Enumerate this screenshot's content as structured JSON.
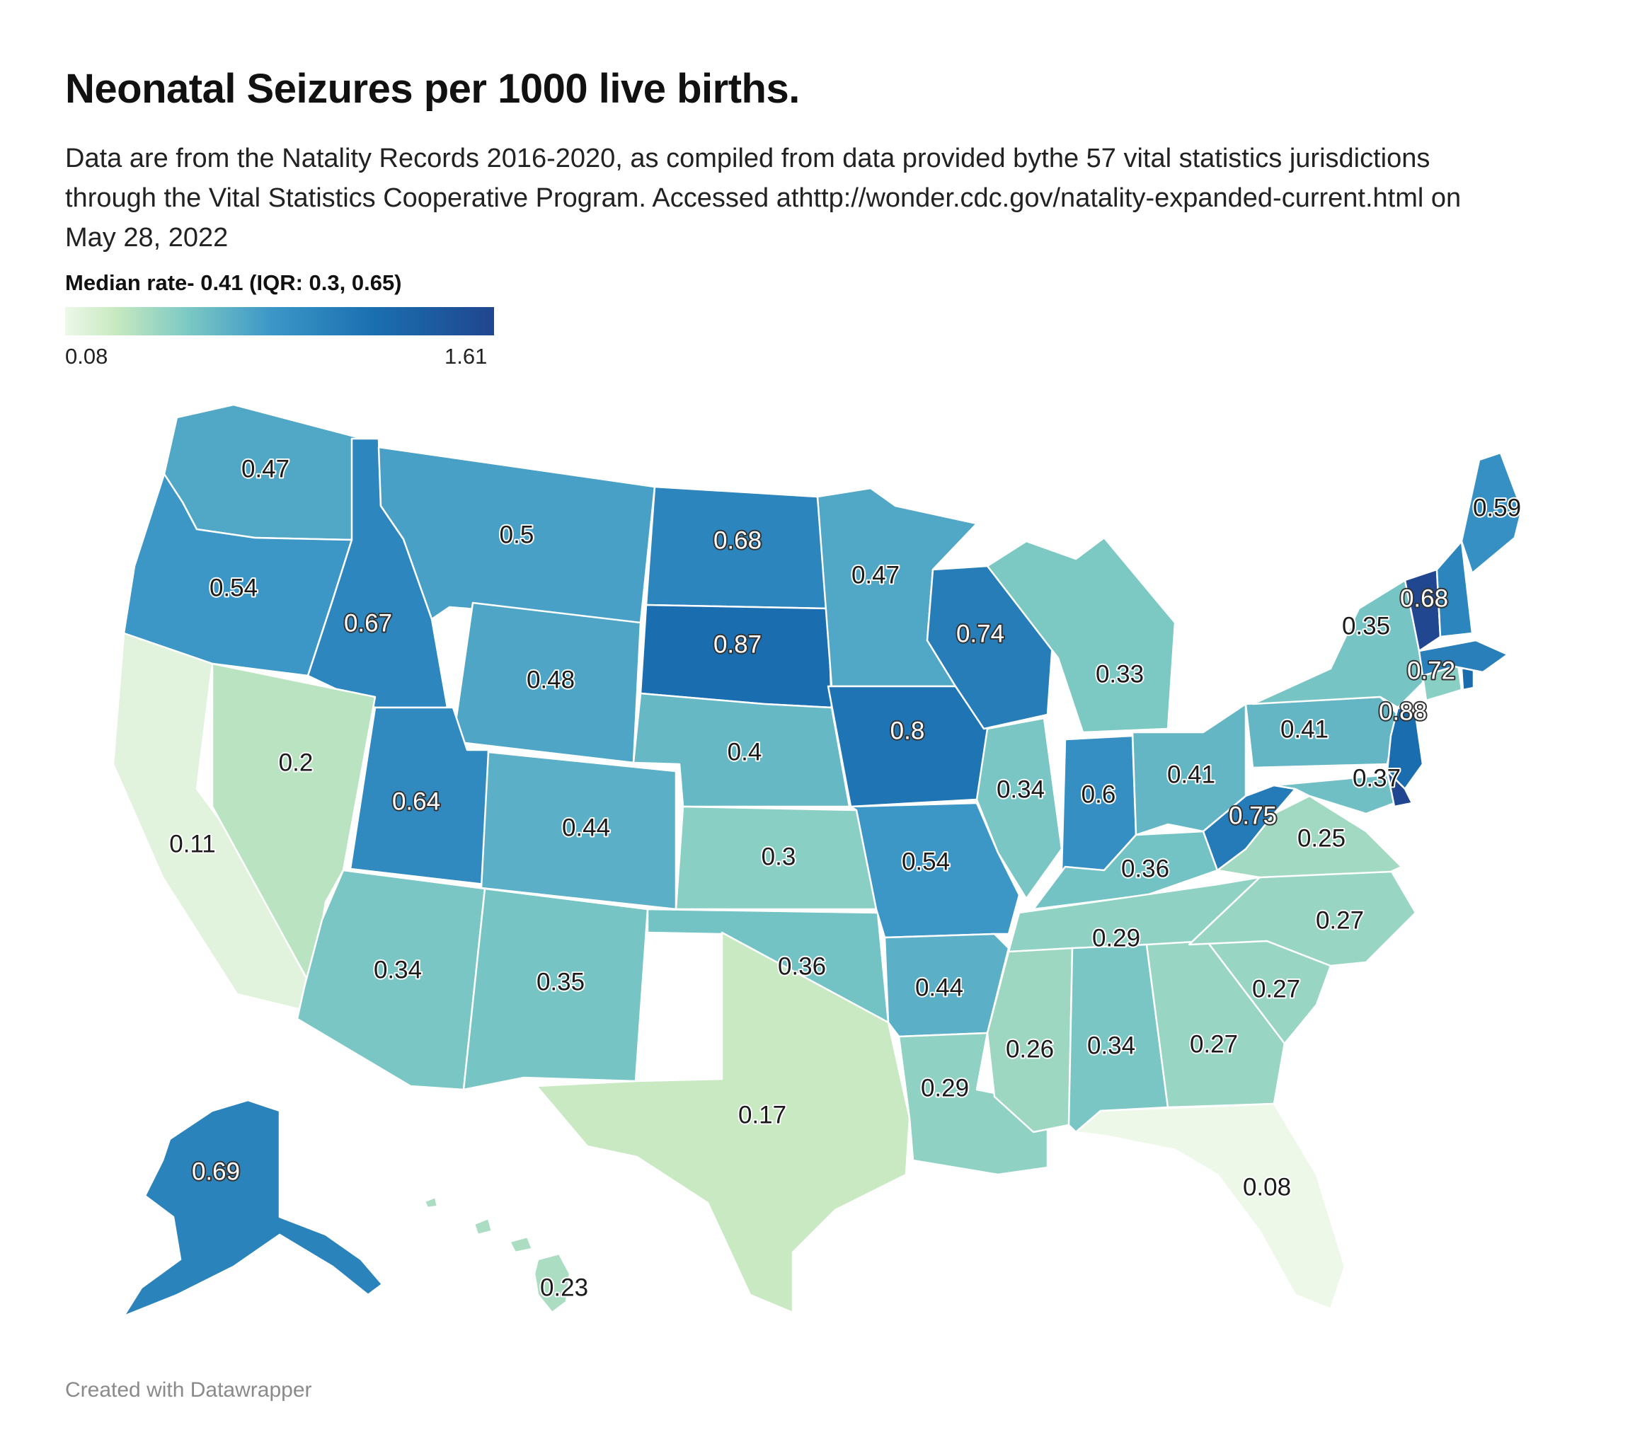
{
  "header": {
    "title": "Neonatal Seizures per 1000 live births.",
    "subtitle": "Data are from the Natality Records 2016-2020, as compiled from data provided bythe 57 vital statistics jurisdictions through the Vital Statistics Cooperative Program. Accessed athttp://wonder.cdc.gov/natality-expanded-current.html on May 28, 2022"
  },
  "legend": {
    "title": "Median rate- 0.41 (IQR: 0.3, 0.65)",
    "min": "0.08",
    "max": "1.61",
    "colors": [
      "#edf8e9",
      "#c7e9c0",
      "#7ecac4",
      "#3c97c7",
      "#1a6fb0",
      "#20468f"
    ]
  },
  "chart_data": {
    "type": "choropleth",
    "region": "United States",
    "range": [
      0.08,
      1.61
    ],
    "states": [
      {
        "state": "WA",
        "value": 0.47
      },
      {
        "state": "OR",
        "value": 0.54
      },
      {
        "state": "CA",
        "value": 0.11
      },
      {
        "state": "ID",
        "value": 0.67
      },
      {
        "state": "NV",
        "value": 0.2
      },
      {
        "state": "MT",
        "value": 0.5
      },
      {
        "state": "WY",
        "value": 0.48
      },
      {
        "state": "UT",
        "value": 0.64
      },
      {
        "state": "AZ",
        "value": 0.34
      },
      {
        "state": "CO",
        "value": 0.44
      },
      {
        "state": "NM",
        "value": 0.35
      },
      {
        "state": "ND",
        "value": 0.68
      },
      {
        "state": "SD",
        "value": 0.87
      },
      {
        "state": "NE",
        "value": 0.4
      },
      {
        "state": "KS",
        "value": 0.3
      },
      {
        "state": "OK",
        "value": 0.36
      },
      {
        "state": "TX",
        "value": 0.17
      },
      {
        "state": "MN",
        "value": 0.47
      },
      {
        "state": "IA",
        "value": 0.8
      },
      {
        "state": "MO",
        "value": 0.54
      },
      {
        "state": "AR",
        "value": 0.44
      },
      {
        "state": "LA",
        "value": 0.29
      },
      {
        "state": "WI",
        "value": 0.74
      },
      {
        "state": "IL",
        "value": 0.34
      },
      {
        "state": "MI",
        "value": 0.33
      },
      {
        "state": "IN",
        "value": 0.6
      },
      {
        "state": "OH",
        "value": 0.41
      },
      {
        "state": "KY",
        "value": 0.36
      },
      {
        "state": "TN",
        "value": 0.29
      },
      {
        "state": "MS",
        "value": 0.26
      },
      {
        "state": "AL",
        "value": 0.34
      },
      {
        "state": "GA",
        "value": 0.27
      },
      {
        "state": "FL",
        "value": 0.08
      },
      {
        "state": "SC",
        "value": 0.27
      },
      {
        "state": "NC",
        "value": 0.27
      },
      {
        "state": "VA",
        "value": 0.25
      },
      {
        "state": "WV",
        "value": 0.75
      },
      {
        "state": "PA",
        "value": 0.41
      },
      {
        "state": "NY",
        "value": 0.35
      },
      {
        "state": "NJ",
        "value": 0.88
      },
      {
        "state": "MD",
        "value": 0.37
      },
      {
        "state": "DE",
        "value": 1.61
      },
      {
        "state": "CT",
        "value": 0.3
      },
      {
        "state": "RI",
        "value": 0.9
      },
      {
        "state": "MA",
        "value": 0.72
      },
      {
        "state": "VT",
        "value": 1.6
      },
      {
        "state": "NH",
        "value": 0.68
      },
      {
        "state": "ME",
        "value": 0.59
      },
      {
        "state": "AK",
        "value": 0.69
      },
      {
        "state": "HI",
        "value": 0.23
      }
    ]
  },
  "footer": {
    "credit": "Created with Datawrapper"
  }
}
